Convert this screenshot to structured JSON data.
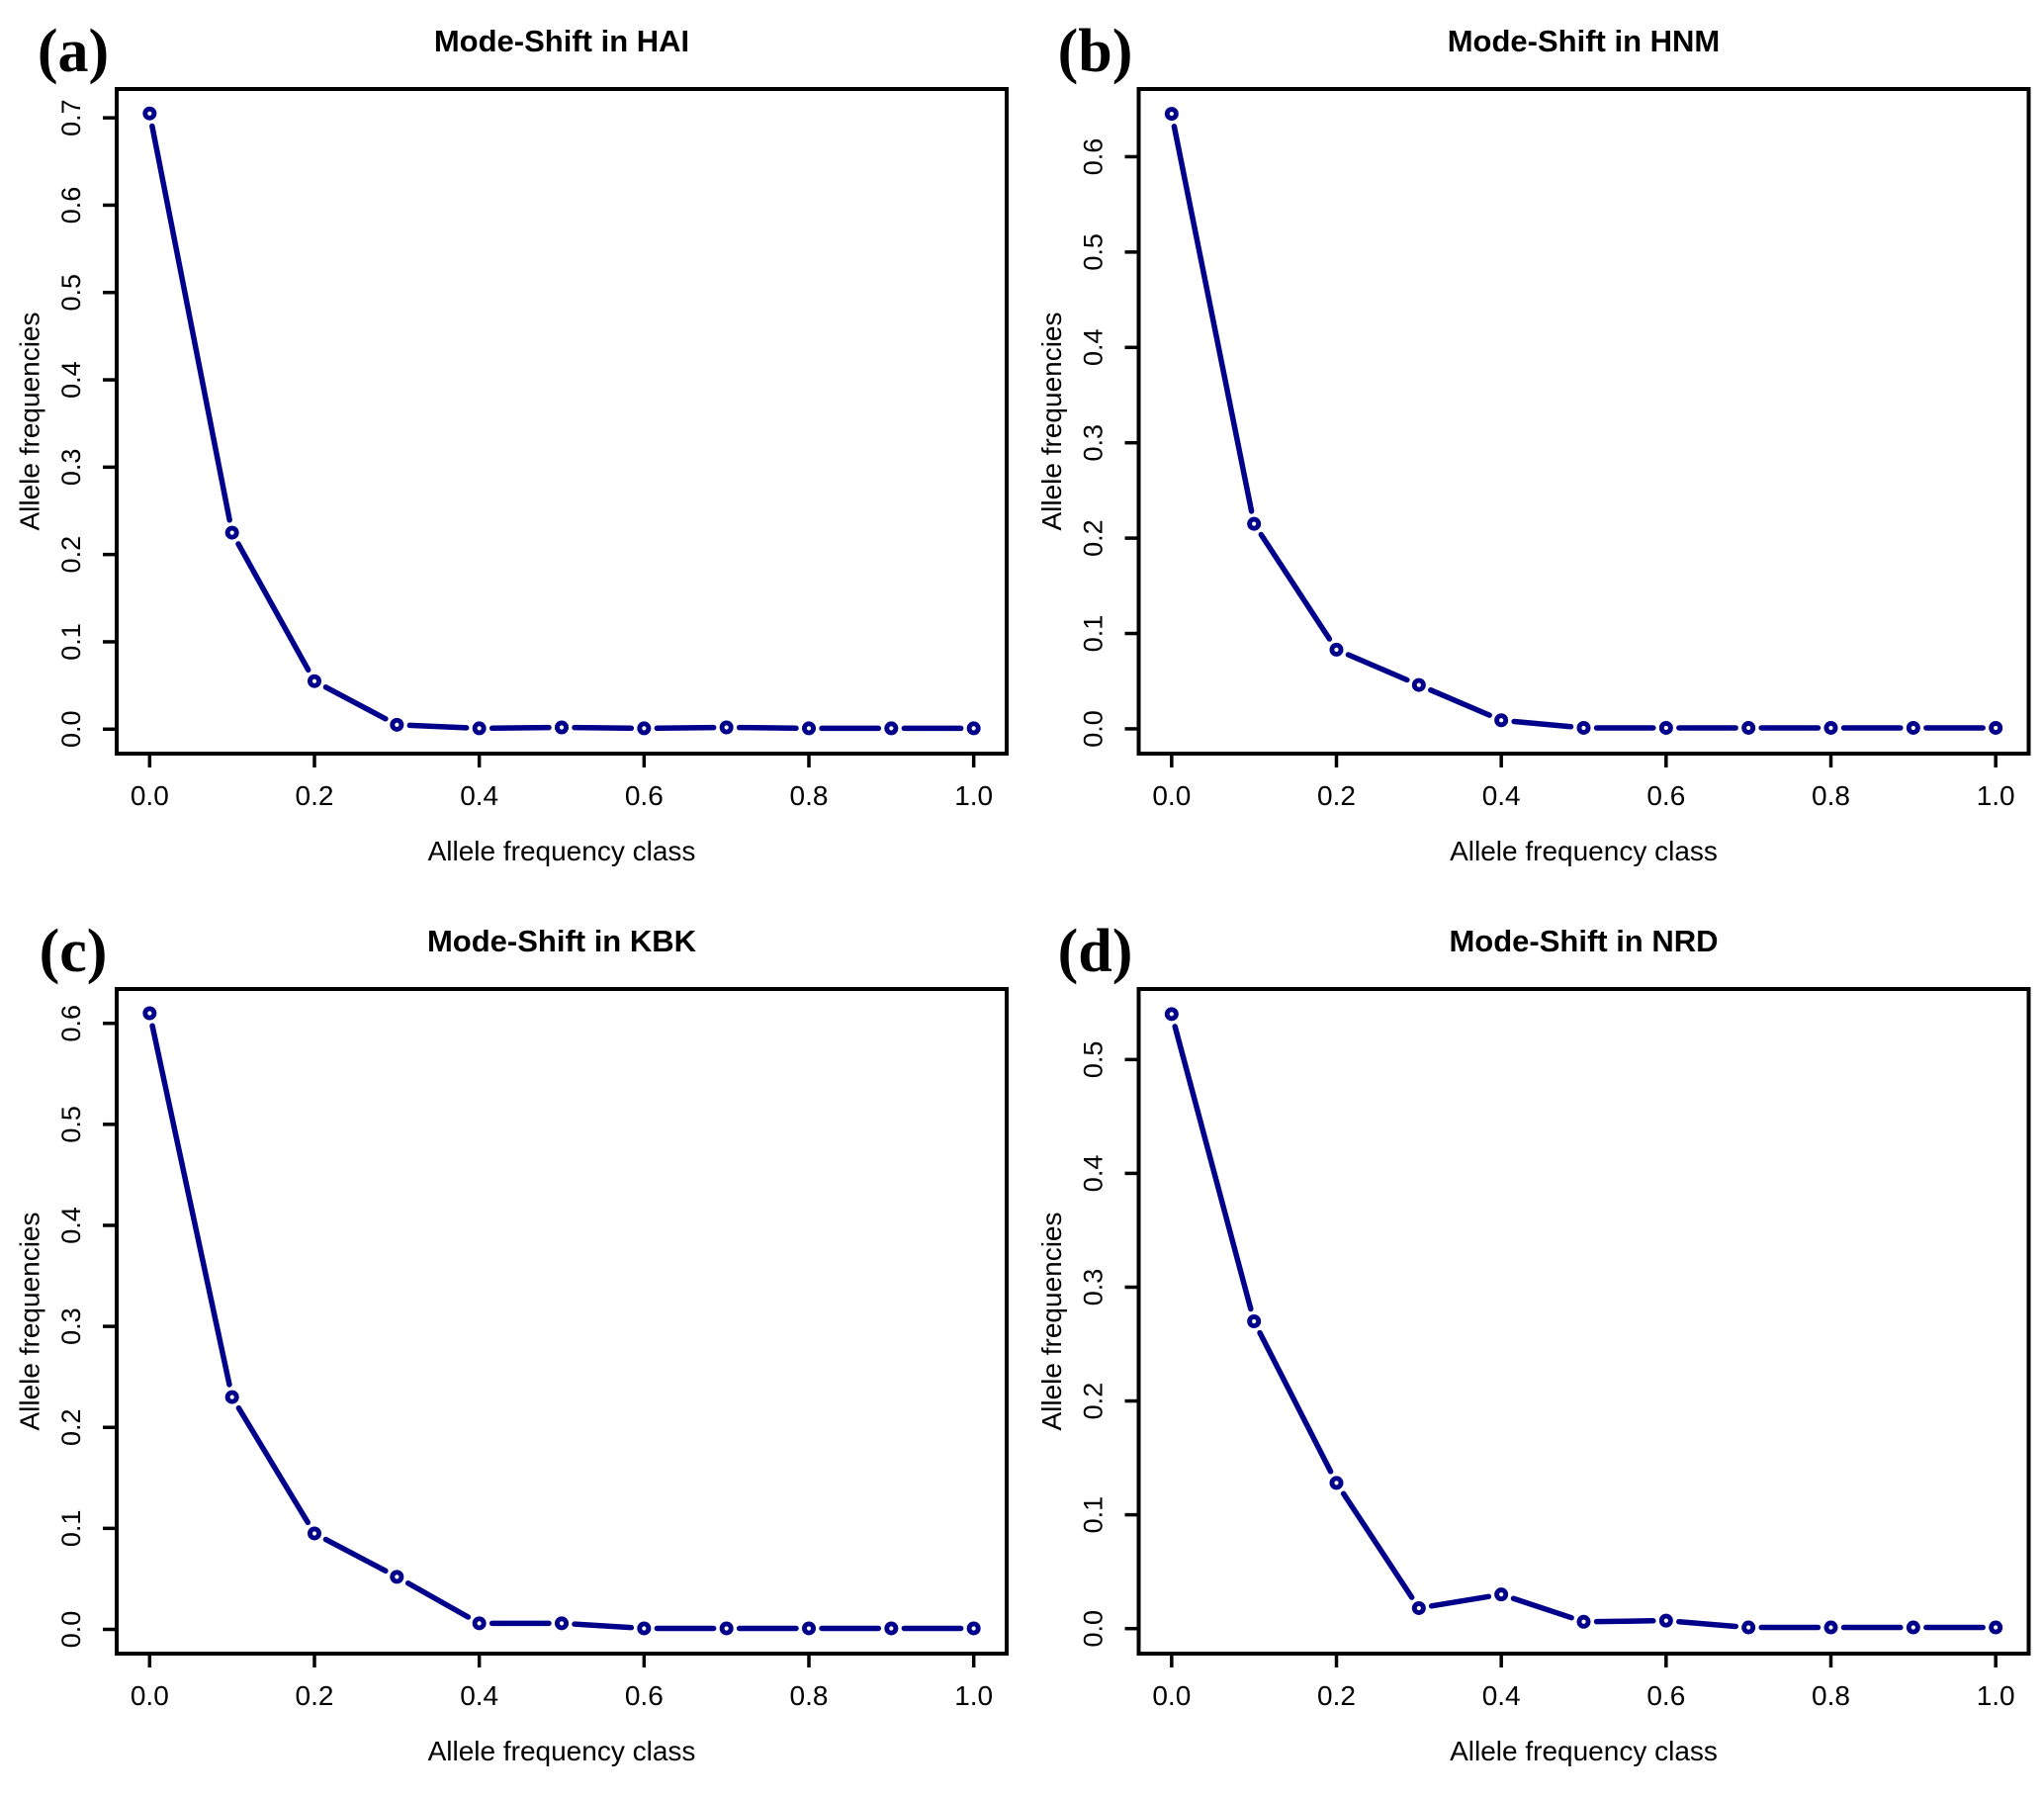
{
  "figure": {
    "background": "#ffffff",
    "line_color": "#00008B",
    "marker_center_color": "#ffffff",
    "axis_color": "#000000",
    "text_color": "#000000"
  },
  "chart_data": [
    {
      "panel_label": "(a)",
      "title": "Mode-Shift in HAI",
      "type": "line",
      "xlabel": "Allele frequency class",
      "ylabel": "Allele frequencies",
      "x": [
        0.0,
        0.1,
        0.2,
        0.3,
        0.4,
        0.5,
        0.6,
        0.7,
        0.8,
        0.9,
        1.0
      ],
      "values": [
        0.705,
        0.225,
        0.055,
        0.005,
        0.001,
        0.002,
        0.001,
        0.002,
        0.001,
        0.001,
        0.001
      ],
      "xticks": [
        0.0,
        0.2,
        0.4,
        0.6,
        0.8,
        1.0
      ],
      "yticks": [
        0.0,
        0.1,
        0.2,
        0.3,
        0.4,
        0.5,
        0.6,
        0.7
      ],
      "xlim": [
        -0.04,
        1.04
      ],
      "ylim": [
        -0.028,
        0.733
      ],
      "grid": false,
      "legend": "none"
    },
    {
      "panel_label": "(b)",
      "title": "Mode-Shift in HNM",
      "type": "line",
      "xlabel": "Allele frequency class",
      "ylabel": "Allele frequencies",
      "x": [
        0.0,
        0.1,
        0.2,
        0.3,
        0.4,
        0.5,
        0.6,
        0.7,
        0.8,
        0.9,
        1.0
      ],
      "values": [
        0.645,
        0.215,
        0.083,
        0.046,
        0.009,
        0.001,
        0.001,
        0.001,
        0.001,
        0.001,
        0.001
      ],
      "xticks": [
        0.0,
        0.2,
        0.4,
        0.6,
        0.8,
        1.0
      ],
      "yticks": [
        0.0,
        0.1,
        0.2,
        0.3,
        0.4,
        0.5,
        0.6
      ],
      "xlim": [
        -0.04,
        1.04
      ],
      "ylim": [
        -0.026,
        0.671
      ],
      "grid": false,
      "legend": "none"
    },
    {
      "panel_label": "(c)",
      "title": "Mode-Shift in KBK",
      "type": "line",
      "xlabel": "Allele frequency class",
      "ylabel": "Allele frequencies",
      "x": [
        0.0,
        0.1,
        0.2,
        0.3,
        0.4,
        0.5,
        0.6,
        0.7,
        0.8,
        0.9,
        1.0
      ],
      "values": [
        0.61,
        0.23,
        0.095,
        0.052,
        0.006,
        0.006,
        0.001,
        0.001,
        0.001,
        0.001,
        0.001
      ],
      "xticks": [
        0.0,
        0.2,
        0.4,
        0.6,
        0.8,
        1.0
      ],
      "yticks": [
        0.0,
        0.1,
        0.2,
        0.3,
        0.4,
        0.5,
        0.6
      ],
      "xlim": [
        -0.04,
        1.04
      ],
      "ylim": [
        -0.024,
        0.634
      ],
      "grid": false,
      "legend": "none"
    },
    {
      "panel_label": "(d)",
      "title": "Mode-Shift in NRD",
      "type": "line",
      "xlabel": "Allele frequency class",
      "ylabel": "Allele frequencies",
      "x": [
        0.0,
        0.1,
        0.2,
        0.3,
        0.4,
        0.5,
        0.6,
        0.7,
        0.8,
        0.9,
        1.0
      ],
      "values": [
        0.54,
        0.27,
        0.128,
        0.018,
        0.03,
        0.006,
        0.007,
        0.001,
        0.001,
        0.001,
        0.001
      ],
      "xticks": [
        0.0,
        0.2,
        0.4,
        0.6,
        0.8,
        1.0
      ],
      "yticks": [
        0.0,
        0.1,
        0.2,
        0.3,
        0.4,
        0.5
      ],
      "xlim": [
        -0.04,
        1.04
      ],
      "ylim": [
        -0.022,
        0.562
      ],
      "grid": false,
      "legend": "none"
    }
  ]
}
